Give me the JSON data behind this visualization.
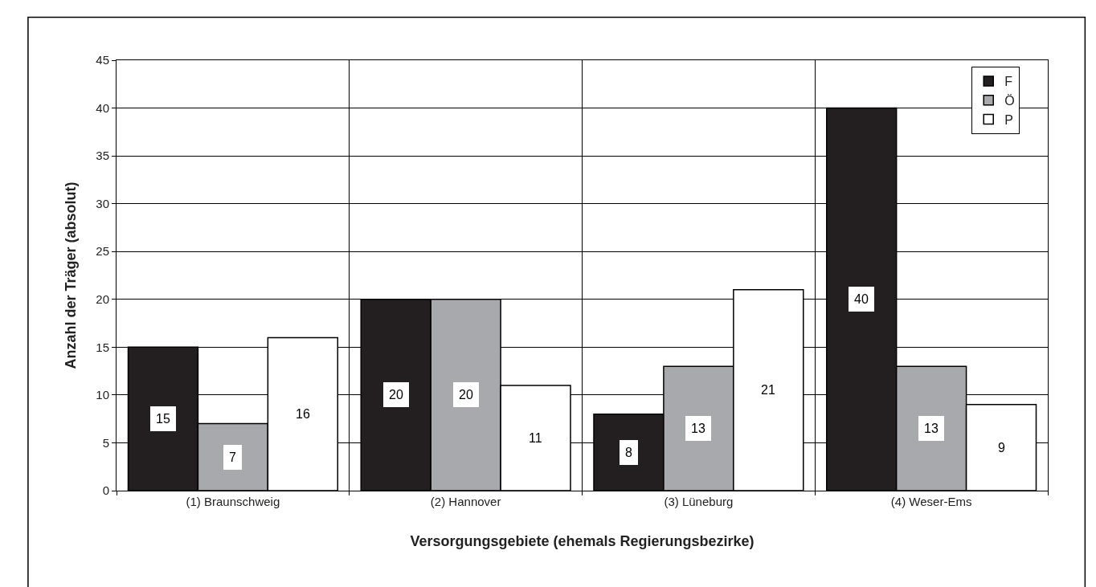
{
  "chart_data": {
    "type": "bar",
    "xlabel": "Versorgungsgebiete (ehemals Regierungsbezirke)",
    "ylabel": "Anzahl der Träger (absolut)",
    "categories": [
      "(1) Braunschweig",
      "(2) Hannover",
      "(3) Lüneburg",
      "(4) Weser-Ems"
    ],
    "series": [
      {
        "name": "F",
        "color": "#231f20",
        "values": [
          15,
          20,
          8,
          40
        ]
      },
      {
        "name": "Ö",
        "color": "#a7a9ac",
        "values": [
          7,
          20,
          13,
          13
        ]
      },
      {
        "name": "P",
        "color": "#ffffff",
        "values": [
          16,
          11,
          21,
          9
        ]
      }
    ],
    "ylim": [
      0,
      45
    ],
    "yticks": [
      0,
      5,
      10,
      15,
      20,
      25,
      30,
      35,
      40,
      45
    ],
    "grid": true,
    "legend": "top right",
    "data_labels": true
  }
}
